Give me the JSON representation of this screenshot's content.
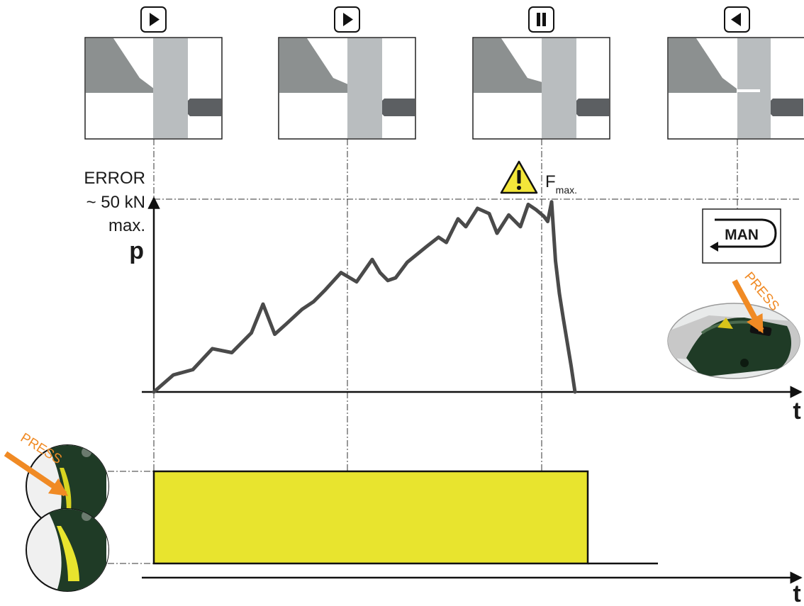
{
  "colors": {
    "signal_fill": "#e8e42e",
    "curve": "#4a4a4a",
    "accent": "#f08a24",
    "panel_dark": "#8c9090",
    "panel_mid": "#b9bdbf",
    "panel_rod": "#5c5f62",
    "tool_green": "#1f3b26"
  },
  "phases": [
    {
      "control": "play-icon"
    },
    {
      "control": "play-icon"
    },
    {
      "control": "pause-icon"
    },
    {
      "control": "reverse-icon"
    }
  ],
  "pressure": {
    "error_label": "ERROR",
    "force_label": "~ 50 kN",
    "max_label": "max.",
    "axis_label": "p",
    "fmax_label": "F",
    "fmax_subscript": "max.",
    "time_label": "t"
  },
  "manual": {
    "button_label": "MAN",
    "press_label": "PRESS"
  },
  "trigger": {
    "press_label": "PRESS",
    "time_label": "t"
  },
  "chart_data": {
    "type": "line",
    "x": [
      0,
      5,
      10,
      15,
      20,
      25,
      28,
      31,
      34,
      38,
      41,
      44,
      48,
      52,
      56,
      58,
      60,
      62,
      65,
      70,
      73,
      75,
      78,
      80,
      83,
      86,
      88,
      91,
      94,
      96,
      98,
      100,
      101,
      102,
      103,
      104,
      105,
      106,
      107,
      108
    ],
    "y": [
      0,
      13,
      17,
      33,
      30,
      45,
      67,
      44,
      52,
      63,
      69,
      78,
      91,
      84,
      101,
      91,
      85,
      87,
      99,
      111,
      118,
      114,
      132,
      126,
      140,
      136,
      121,
      135,
      126,
      143,
      139,
      134,
      130,
      145,
      100,
      75,
      56,
      38,
      20,
      0
    ],
    "xlabel": "t",
    "ylabel": "p",
    "annotations": [
      "ERROR",
      "~ 50 kN",
      "max.",
      "F max."
    ]
  }
}
